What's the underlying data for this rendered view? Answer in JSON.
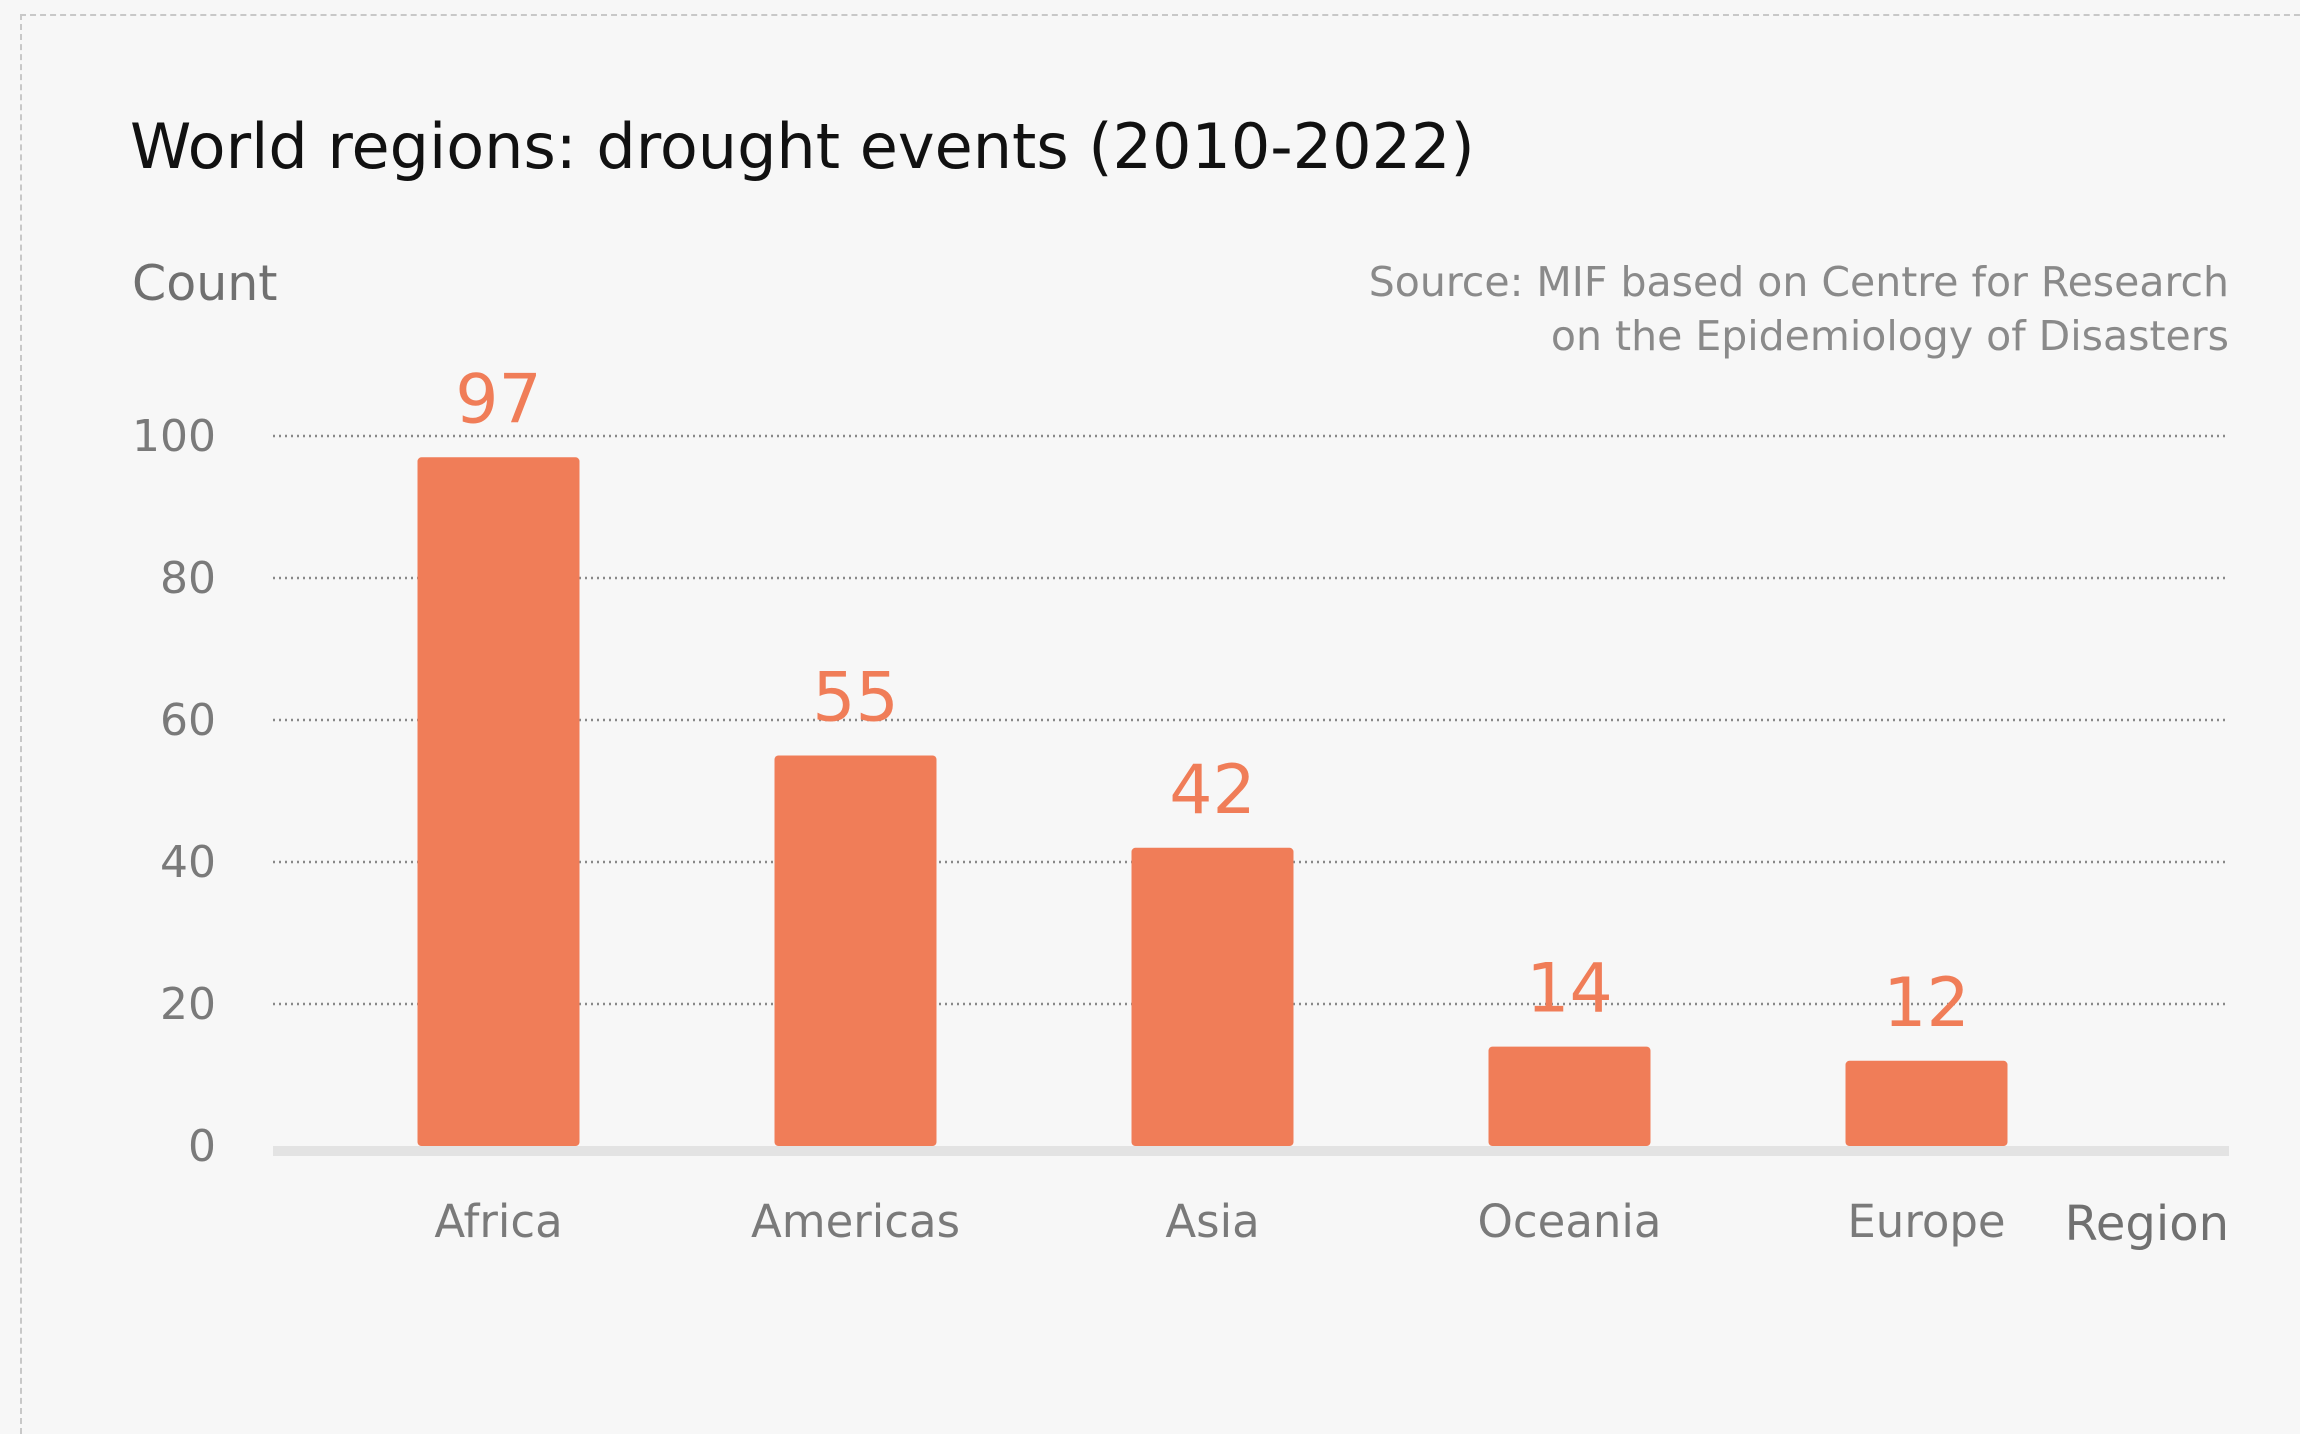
{
  "chart_data": {
    "type": "bar",
    "title": "World regions: drought events (2010-2022)",
    "ylabel": "Count",
    "xlabel": "Region",
    "source": [
      "Source: MIF based on Centre for Research",
      "on the Epidemiology of Disasters"
    ],
    "categories": [
      "Africa",
      "Americas",
      "Asia",
      "Oceania",
      "Europe"
    ],
    "values": [
      97,
      55,
      42,
      14,
      12
    ],
    "ylim": [
      0,
      100
    ],
    "yticks": [
      0,
      20,
      40,
      60,
      80,
      100
    ],
    "grid": true,
    "colors": {
      "bar": "#f07d58",
      "label": "#f07d58",
      "title": "#111111",
      "axis_text": "#777777",
      "grid": "#888888",
      "baseline": "#e3e3e3"
    }
  }
}
